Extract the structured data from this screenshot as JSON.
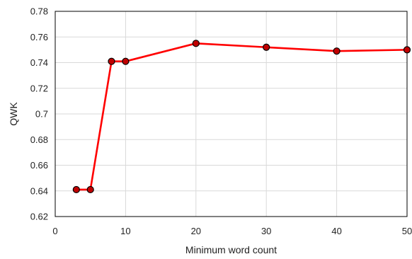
{
  "chart_data": {
    "type": "line",
    "title": "",
    "xlabel": "Minimum word count",
    "ylabel": "QWK",
    "xlim": [
      0,
      50
    ],
    "ylim": [
      0.62,
      0.78
    ],
    "x_ticks": [
      "0",
      "10",
      "20",
      "30",
      "40",
      "50"
    ],
    "y_ticks": [
      "0.62",
      "0.64",
      "0.66",
      "0.68",
      "0.7",
      "0.72",
      "0.74",
      "0.76",
      "0.78"
    ],
    "grid": true,
    "legend": "none",
    "series": [
      {
        "x": [
          3,
          5,
          8,
          10,
          20,
          30,
          40,
          50
        ],
        "y": [
          0.641,
          0.641,
          0.741,
          0.741,
          0.755,
          0.752,
          0.749,
          0.75
        ],
        "line_color": "#ff0000",
        "marker_fill": "#c00000",
        "marker_stroke": "#000000"
      }
    ]
  }
}
